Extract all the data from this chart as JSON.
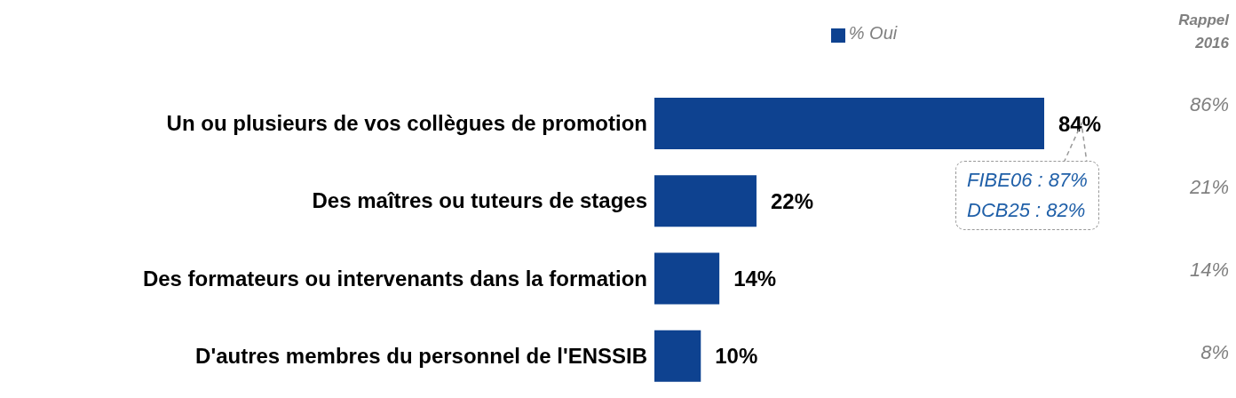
{
  "chart_data": {
    "type": "bar",
    "orientation": "horizontal",
    "categories": [
      "Un ou plusieurs de vos collègues de promotion",
      "Des maîtres ou tuteurs de stages",
      "Des formateurs ou intervenants dans la formation",
      "D'autres membres du personnel de l'ENSSIB"
    ],
    "series": [
      {
        "name": "% Oui",
        "color": "#0e4290",
        "values": [
          84,
          22,
          14,
          10
        ],
        "value_labels": [
          "84%",
          "22%",
          "14%",
          "10%"
        ]
      }
    ],
    "legend": "top",
    "annotations": [
      "Rappel 2016",
      "86%",
      "21%",
      "14%",
      "8%",
      {
        "text": "FIBE06 : 87%\nDCB25 : 82%",
        "x": 84,
        "y": "Un ou plusieurs de vos collègues de promotion"
      }
    ]
  }
}
